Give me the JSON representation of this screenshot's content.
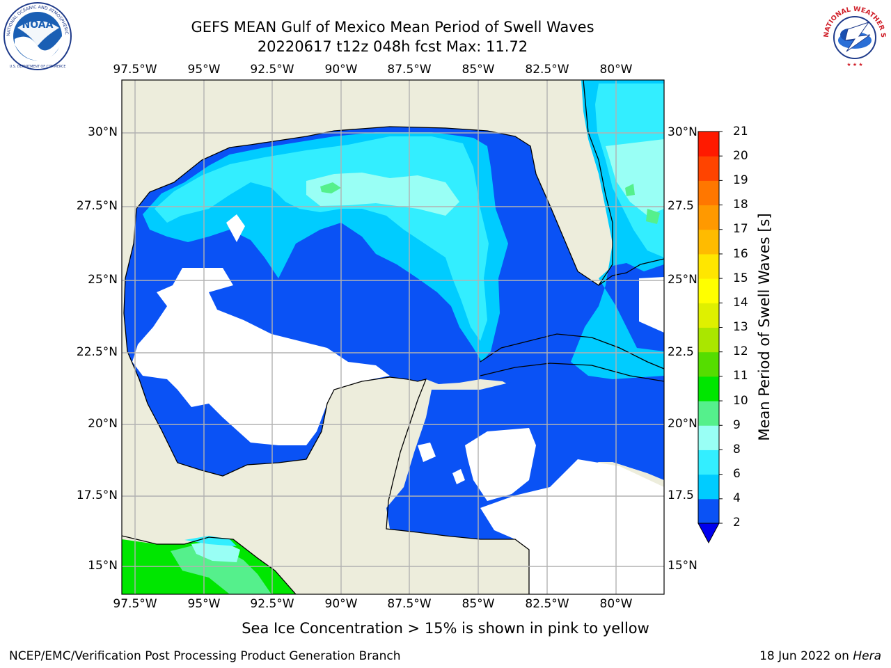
{
  "header": {
    "title_line1": "GEFS MEAN Gulf of Mexico Mean Period of Swell Waves",
    "title_line2": "20220617 t12z 048h fcst   Max: 11.72"
  },
  "logos": {
    "left": {
      "name": "NOAA",
      "ring_text": "NATIONAL OCEANIC AND ATMOSPHERIC ADMINISTRATION",
      "bottom_text": "U.S. DEPARTMENT OF COMMERCE"
    },
    "right": {
      "ring_text": "NATIONAL WEATHER SERVICE"
    }
  },
  "map": {
    "lon_labels": [
      "97.5°W",
      "95°W",
      "92.5°W",
      "90°W",
      "87.5°W",
      "85°W",
      "82.5°W",
      "80°W"
    ],
    "lat_labels_left": [
      "30°N",
      "27.5°N",
      "25°N",
      "22.5°N",
      "20°N",
      "17.5°N",
      "15°N"
    ],
    "lat_labels_right": [
      "30°N",
      "27.5",
      "25°N",
      "22.5",
      "20°N",
      "17.5",
      "15°N"
    ],
    "colors": {
      "land": "#ededdc",
      "grid": "#b2b2b2",
      "coast": "#000000"
    }
  },
  "colorbar": {
    "label": "Mean Period of Swell Waves [s]",
    "ticks": [
      "2",
      "4",
      "6",
      "8",
      "9",
      "10",
      "11",
      "12",
      "13",
      "14",
      "15",
      "16",
      "17",
      "18",
      "19",
      "20",
      "21"
    ],
    "colors": [
      "#0a52f5",
      "#00ccff",
      "#33eeff",
      "#99fff5",
      "#55f08c",
      "#00e600",
      "#55dd00",
      "#aae600",
      "#dff000",
      "#ffff00",
      "#ffe600",
      "#ffbb00",
      "#ff9900",
      "#ff7700",
      "#ff4400",
      "#ff1a00"
    ],
    "under_color": "#0000ee"
  },
  "footer": {
    "note": "Sea Ice Concentration > 15% is shown in pink to yellow",
    "credit": "NCEP/EMC/Verification Post Processing Product Generation Branch",
    "date": "18 Jun 2022 on",
    "host": "Hera"
  }
}
